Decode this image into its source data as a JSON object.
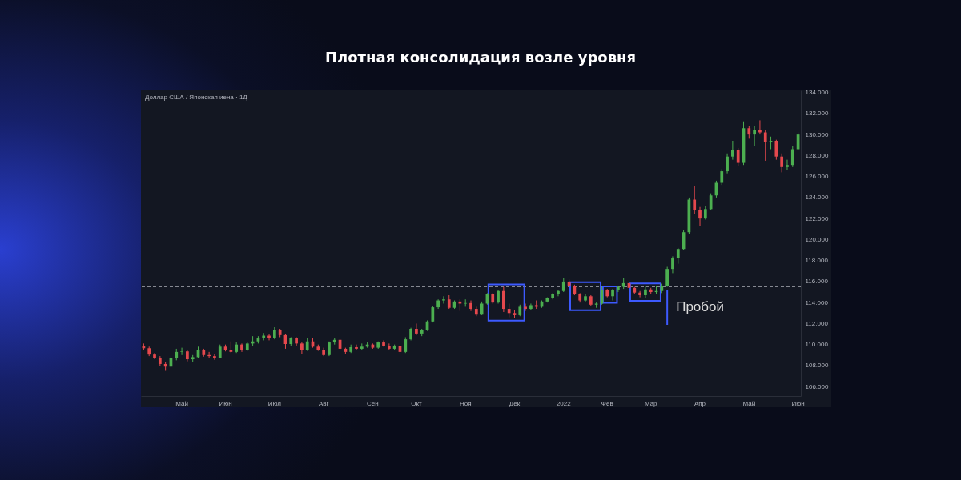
{
  "chart_data": {
    "type": "candlestick",
    "title": "Плотная консолидация возле уровня",
    "annotations": [
      "Доллар США / Японская иена · 1Д",
      "Пробой"
    ],
    "categories": [
      null,
      null,
      null,
      null,
      null,
      null,
      null,
      "Май",
      null,
      null,
      null,
      null,
      null,
      null,
      null,
      "Июн",
      null,
      null,
      null,
      null,
      null,
      null,
      null,
      null,
      "Июл",
      null,
      null,
      null,
      null,
      null,
      null,
      null,
      null,
      "Авг",
      null,
      null,
      null,
      null,
      null,
      null,
      null,
      null,
      "Сен",
      null,
      null,
      null,
      null,
      null,
      null,
      null,
      "Окт",
      null,
      null,
      null,
      null,
      null,
      null,
      null,
      null,
      "Ноя",
      null,
      null,
      null,
      null,
      null,
      null,
      null,
      null,
      "Дек",
      null,
      null,
      null,
      null,
      null,
      null,
      null,
      null,
      "2022",
      null,
      null,
      null,
      null,
      null,
      null,
      null,
      "Фев",
      null,
      null,
      null,
      null,
      null,
      null,
      null,
      "Мар",
      null,
      null,
      null,
      null,
      null,
      null,
      null,
      null,
      "Апр",
      null,
      null,
      null,
      null,
      null,
      null,
      null,
      null,
      "Май",
      null,
      null,
      null,
      null,
      null,
      null,
      null,
      null,
      "Июн"
    ],
    "ohlc": [
      [
        109.9,
        110.1,
        109.5,
        109.65
      ],
      [
        109.65,
        109.8,
        108.9,
        109.05
      ],
      [
        109.05,
        109.2,
        108.6,
        108.75
      ],
      [
        108.75,
        108.9,
        107.95,
        108.15
      ],
      [
        108.15,
        108.3,
        107.5,
        107.9
      ],
      [
        107.9,
        108.9,
        107.8,
        108.7
      ],
      [
        108.7,
        109.6,
        108.5,
        109.3
      ],
      [
        109.3,
        109.7,
        109.0,
        109.35
      ],
      [
        109.35,
        109.5,
        108.4,
        108.6
      ],
      [
        108.6,
        109.0,
        108.35,
        108.8
      ],
      [
        108.8,
        109.8,
        108.7,
        109.45
      ],
      [
        109.45,
        109.6,
        108.85,
        109.0
      ],
      [
        109.0,
        109.3,
        108.7,
        108.9
      ],
      [
        108.9,
        109.1,
        108.55,
        108.75
      ],
      [
        108.75,
        110.0,
        108.7,
        109.8
      ],
      [
        109.8,
        110.0,
        109.35,
        109.5
      ],
      [
        109.5,
        110.3,
        109.2,
        109.3
      ],
      [
        109.3,
        110.2,
        109.2,
        110.0
      ],
      [
        110.0,
        110.1,
        109.3,
        109.5
      ],
      [
        109.5,
        110.2,
        109.4,
        110.1
      ],
      [
        110.1,
        110.8,
        109.9,
        110.3
      ],
      [
        110.3,
        110.8,
        110.1,
        110.6
      ],
      [
        110.6,
        111.1,
        110.4,
        110.85
      ],
      [
        110.85,
        111.0,
        110.4,
        110.6
      ],
      [
        110.6,
        111.65,
        110.5,
        111.4
      ],
      [
        111.4,
        111.5,
        110.7,
        110.9
      ],
      [
        110.9,
        111.0,
        109.6,
        110.05
      ],
      [
        110.05,
        110.7,
        109.9,
        110.6
      ],
      [
        110.6,
        110.7,
        109.9,
        110.1
      ],
      [
        110.1,
        110.2,
        109.1,
        109.5
      ],
      [
        109.5,
        110.6,
        109.4,
        110.3
      ],
      [
        110.3,
        110.6,
        109.7,
        109.8
      ],
      [
        109.8,
        110.0,
        109.4,
        109.5
      ],
      [
        109.5,
        109.7,
        108.9,
        109.0
      ],
      [
        109.0,
        110.3,
        108.9,
        110.2
      ],
      [
        110.2,
        110.6,
        110.0,
        110.45
      ],
      [
        110.45,
        110.5,
        109.5,
        109.6
      ],
      [
        109.6,
        109.7,
        109.1,
        109.3
      ],
      [
        109.3,
        110.0,
        109.2,
        109.75
      ],
      [
        109.75,
        110.0,
        109.5,
        109.6
      ],
      [
        109.6,
        110.1,
        109.5,
        109.8
      ],
      [
        109.8,
        110.2,
        109.7,
        110.0
      ],
      [
        110.0,
        110.1,
        109.6,
        109.7
      ],
      [
        109.7,
        110.3,
        109.6,
        110.2
      ],
      [
        110.2,
        110.4,
        109.8,
        109.9
      ],
      [
        109.9,
        110.1,
        109.5,
        109.6
      ],
      [
        109.6,
        110.0,
        109.5,
        109.9
      ],
      [
        109.9,
        110.0,
        109.1,
        109.3
      ],
      [
        109.3,
        110.7,
        109.2,
        110.5
      ],
      [
        110.5,
        111.6,
        110.4,
        111.5
      ],
      [
        111.5,
        112.0,
        110.9,
        111.05
      ],
      [
        111.05,
        111.5,
        110.8,
        111.4
      ],
      [
        111.4,
        112.3,
        111.3,
        112.2
      ],
      [
        112.2,
        113.7,
        112.1,
        113.55
      ],
      [
        113.55,
        114.3,
        113.4,
        114.2
      ],
      [
        114.2,
        114.6,
        113.9,
        114.3
      ],
      [
        114.3,
        114.7,
        113.4,
        113.5
      ],
      [
        113.5,
        114.2,
        113.4,
        114.1
      ],
      [
        114.1,
        114.3,
        113.2,
        113.9
      ],
      [
        113.9,
        114.3,
        113.6,
        113.95
      ],
      [
        113.95,
        114.2,
        113.2,
        113.4
      ],
      [
        113.4,
        113.6,
        112.7,
        112.85
      ],
      [
        112.85,
        114.1,
        112.8,
        113.9
      ],
      [
        113.9,
        114.9,
        113.8,
        114.8
      ],
      [
        114.8,
        114.9,
        113.9,
        114.0
      ],
      [
        114.0,
        115.2,
        113.9,
        115.1
      ],
      [
        115.1,
        115.5,
        113.1,
        113.4
      ],
      [
        113.4,
        113.9,
        112.6,
        113.0
      ],
      [
        113.0,
        113.3,
        112.5,
        112.8
      ],
      [
        112.8,
        113.8,
        112.7,
        113.6
      ],
      [
        113.6,
        113.9,
        113.2,
        113.4
      ],
      [
        113.4,
        113.9,
        113.3,
        113.75
      ],
      [
        113.75,
        114.2,
        113.4,
        113.6
      ],
      [
        113.6,
        114.2,
        113.5,
        114.1
      ],
      [
        114.1,
        114.5,
        114.0,
        114.4
      ],
      [
        114.4,
        114.9,
        114.3,
        114.8
      ],
      [
        114.8,
        115.2,
        114.6,
        115.1
      ],
      [
        115.1,
        116.3,
        115.0,
        116.0
      ],
      [
        116.0,
        116.2,
        115.5,
        115.6
      ],
      [
        115.6,
        115.7,
        114.7,
        114.8
      ],
      [
        114.8,
        114.9,
        114.0,
        114.2
      ],
      [
        114.2,
        114.8,
        114.1,
        114.6
      ],
      [
        114.6,
        114.7,
        113.7,
        113.8
      ],
      [
        113.8,
        114.0,
        113.5,
        113.9
      ],
      [
        113.9,
        115.5,
        113.8,
        115.2
      ],
      [
        115.2,
        115.3,
        114.5,
        114.6
      ],
      [
        114.6,
        115.3,
        114.2,
        115.2
      ],
      [
        115.2,
        115.6,
        115.0,
        115.5
      ],
      [
        115.5,
        116.3,
        115.3,
        115.85
      ],
      [
        115.85,
        116.0,
        115.2,
        115.4
      ],
      [
        115.4,
        115.5,
        114.8,
        114.95
      ],
      [
        114.95,
        115.1,
        114.5,
        114.7
      ],
      [
        114.7,
        115.6,
        114.4,
        115.25
      ],
      [
        115.25,
        115.4,
        114.8,
        115.0
      ],
      [
        115.0,
        115.6,
        114.8,
        115.1
      ],
      [
        115.1,
        115.8,
        114.9,
        115.6
      ],
      [
        115.6,
        117.4,
        115.5,
        117.2
      ],
      [
        117.2,
        118.4,
        116.8,
        118.2
      ],
      [
        118.2,
        119.2,
        117.7,
        119.1
      ],
      [
        119.1,
        120.9,
        119.0,
        120.7
      ],
      [
        120.7,
        124.0,
        120.5,
        123.8
      ],
      [
        123.8,
        125.1,
        122.4,
        122.8
      ],
      [
        122.8,
        123.1,
        121.3,
        122.0
      ],
      [
        122.0,
        123.2,
        121.9,
        122.9
      ],
      [
        122.9,
        124.4,
        122.8,
        124.2
      ],
      [
        124.2,
        125.6,
        124.0,
        125.4
      ],
      [
        125.4,
        126.7,
        125.2,
        126.5
      ],
      [
        126.5,
        128.2,
        126.3,
        127.9
      ],
      [
        127.9,
        129.4,
        127.6,
        128.5
      ],
      [
        128.5,
        128.7,
        127.0,
        127.3
      ],
      [
        127.3,
        131.25,
        127.1,
        130.6
      ],
      [
        130.6,
        130.8,
        129.6,
        130.0
      ],
      [
        130.0,
        130.8,
        128.9,
        130.4
      ],
      [
        130.4,
        131.35,
        130.0,
        130.2
      ],
      [
        130.2,
        130.4,
        127.5,
        129.3
      ],
      [
        129.3,
        129.8,
        128.6,
        129.4
      ],
      [
        129.4,
        129.5,
        127.6,
        127.9
      ],
      [
        127.9,
        128.2,
        126.4,
        126.9
      ],
      [
        126.9,
        127.6,
        126.6,
        127.1
      ],
      [
        127.1,
        128.9,
        126.9,
        128.6
      ],
      [
        128.6,
        130.2,
        128.5,
        130.0
      ]
    ],
    "colors": [
      "#e5484d",
      "#e5484d",
      "#e5484d",
      "#e5484d",
      "#e5484d",
      "#4caf50",
      "#4caf50",
      "#4caf50",
      "#e5484d",
      "#4caf50",
      "#4caf50",
      "#e5484d",
      "#e5484d",
      "#e5484d",
      "#4caf50",
      "#e5484d",
      "#e5484d",
      "#4caf50",
      "#e5484d",
      "#4caf50",
      "#4caf50",
      "#4caf50",
      "#4caf50",
      "#e5484d",
      "#4caf50",
      "#e5484d",
      "#e5484d",
      "#4caf50",
      "#e5484d",
      "#e5484d",
      "#4caf50",
      "#e5484d",
      "#e5484d",
      "#e5484d",
      "#4caf50",
      "#4caf50",
      "#e5484d",
      "#e5484d",
      "#4caf50",
      "#e5484d",
      "#4caf50",
      "#4caf50",
      "#e5484d",
      "#4caf50",
      "#e5484d",
      "#e5484d",
      "#4caf50",
      "#e5484d",
      "#4caf50",
      "#4caf50",
      "#e5484d",
      "#4caf50",
      "#4caf50",
      "#4caf50",
      "#4caf50",
      "#4caf50",
      "#e5484d",
      "#4caf50",
      "#e5484d",
      "#4caf50",
      "#e5484d",
      "#e5484d",
      "#4caf50",
      "#4caf50",
      "#e5484d",
      "#4caf50",
      "#e5484d",
      "#e5484d",
      "#e5484d",
      "#4caf50",
      "#e5484d",
      "#4caf50",
      "#e5484d",
      "#4caf50",
      "#4caf50",
      "#4caf50",
      "#4caf50",
      "#4caf50",
      "#e5484d",
      "#e5484d",
      "#e5484d",
      "#4caf50",
      "#e5484d",
      "#4caf50",
      "#4caf50",
      "#e5484d",
      "#4caf50",
      "#4caf50",
      "#4caf50",
      "#e5484d",
      "#e5484d",
      "#e5484d",
      "#4caf50",
      "#e5484d",
      "#4caf50",
      "#4caf50",
      "#4caf50",
      "#4caf50",
      "#4caf50",
      "#4caf50",
      "#4caf50",
      "#e5484d",
      "#e5484d",
      "#4caf50",
      "#4caf50",
      "#4caf50",
      "#4caf50",
      "#4caf50",
      "#4caf50",
      "#e5484d",
      "#4caf50",
      "#e5484d",
      "#4caf50",
      "#e5484d",
      "#e5484d",
      "#4caf50",
      "#e5484d",
      "#e5484d",
      "#4caf50",
      "#4caf50",
      "#4caf50"
    ],
    "ylim": [
      105.1,
      134.2
    ],
    "yticks": [
      {
        "value": 106,
        "label": "106.000"
      },
      {
        "value": 108,
        "label": "108.000"
      },
      {
        "value": 110,
        "label": "110.000"
      },
      {
        "value": 112,
        "label": "112.000"
      },
      {
        "value": 114,
        "label": "114.000"
      },
      {
        "value": 116,
        "label": "116.000"
      },
      {
        "value": 118,
        "label": "118.000"
      },
      {
        "value": 120,
        "label": "120.000"
      },
      {
        "value": 122,
        "label": "122.000"
      },
      {
        "value": 124,
        "label": "124.000"
      },
      {
        "value": 126,
        "label": "126.000"
      },
      {
        "value": 128,
        "label": "128.000"
      },
      {
        "value": 130,
        "label": "130.000"
      },
      {
        "value": 132,
        "label": "132.000"
      },
      {
        "value": 134,
        "label": "134.000"
      }
    ],
    "ref_lines": [
      {
        "axis": "y",
        "value": 115.5,
        "color": "#8a8d96",
        "line_style": "dashed"
      }
    ]
  }
}
